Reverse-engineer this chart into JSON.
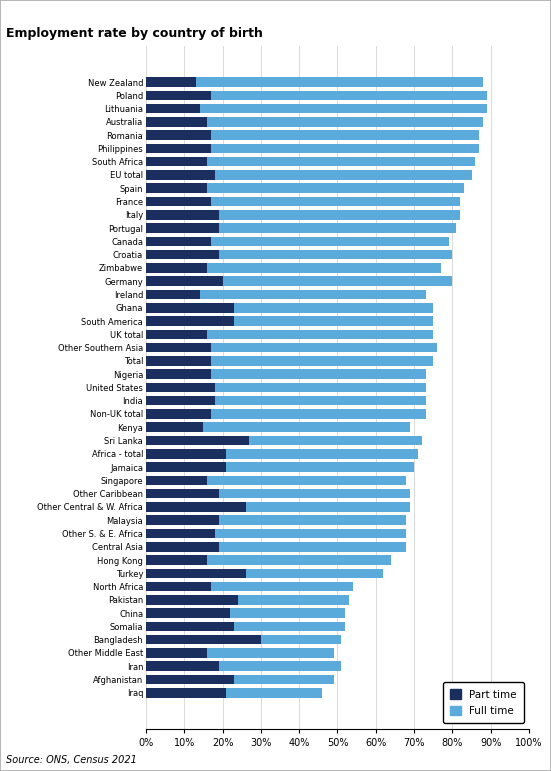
{
  "title": "Employment rate by country of birth",
  "source": "Source: ONS, Census 2021",
  "part_time_color": "#1a2f5e",
  "full_time_color": "#5aabdc",
  "background_color": "#ffffff",
  "categories": [
    "New Zealand",
    "Poland",
    "Lithuania",
    "Australia",
    "Romania",
    "Philippines",
    "South Africa",
    "EU total",
    "Spain",
    "France",
    "Italy",
    "Portugal",
    "Canada",
    "Croatia",
    "Zimbabwe",
    "Germany",
    "Ireland",
    "Ghana",
    "South America",
    "UK total",
    "Other Southern Asia",
    "Total",
    "Nigeria",
    "United States",
    "India",
    "Non-UK total",
    "Kenya",
    "Sri Lanka",
    "Africa - total",
    "Jamaica",
    "Singapore",
    "Other Caribbean",
    "Other Central & W. Africa",
    "Malaysia",
    "Other S. & E. Africa",
    "Central Asia",
    "Hong Kong",
    "Turkey",
    "North Africa",
    "Pakistan",
    "China",
    "Somalia",
    "Bangladesh",
    "Other Middle East",
    "Iran",
    "Afghanistan",
    "Iraq"
  ],
  "part_time": [
    0.13,
    0.17,
    0.14,
    0.16,
    0.17,
    0.17,
    0.16,
    0.18,
    0.16,
    0.17,
    0.19,
    0.19,
    0.17,
    0.19,
    0.16,
    0.2,
    0.14,
    0.23,
    0.23,
    0.16,
    0.17,
    0.17,
    0.17,
    0.18,
    0.18,
    0.17,
    0.15,
    0.27,
    0.21,
    0.21,
    0.16,
    0.19,
    0.26,
    0.19,
    0.18,
    0.19,
    0.16,
    0.26,
    0.17,
    0.24,
    0.22,
    0.23,
    0.3,
    0.16,
    0.19,
    0.23,
    0.21
  ],
  "full_time": [
    0.75,
    0.72,
    0.75,
    0.72,
    0.7,
    0.7,
    0.7,
    0.67,
    0.67,
    0.65,
    0.63,
    0.62,
    0.62,
    0.61,
    0.61,
    0.6,
    0.59,
    0.52,
    0.52,
    0.59,
    0.59,
    0.58,
    0.56,
    0.55,
    0.55,
    0.56,
    0.54,
    0.45,
    0.5,
    0.49,
    0.52,
    0.5,
    0.43,
    0.49,
    0.5,
    0.49,
    0.48,
    0.36,
    0.37,
    0.29,
    0.3,
    0.29,
    0.21,
    0.33,
    0.32,
    0.26,
    0.25
  ],
  "xtick_positions": [
    0.0,
    0.1,
    0.2,
    0.3,
    0.4,
    0.5,
    0.6,
    0.7,
    0.8,
    0.9,
    1.0
  ],
  "xticklabels": [
    "0%",
    "10%",
    "20%",
    "30%",
    "40%",
    "50%",
    "60%",
    "70%",
    "80%",
    "90%",
    "100%"
  ]
}
